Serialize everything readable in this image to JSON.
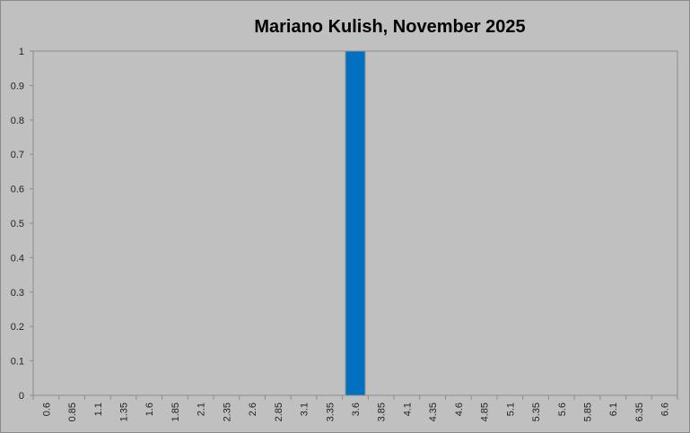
{
  "chart_data": {
    "type": "bar",
    "title": "Mariano Kulish, November 2025",
    "xlabel": "",
    "ylabel": "",
    "categories": [
      "0.6",
      "0.85",
      "1.1",
      "1.35",
      "1.6",
      "1.85",
      "2.1",
      "2.35",
      "2.6",
      "2.85",
      "3.1",
      "3.35",
      "3.6",
      "3.85",
      "4.1",
      "4.35",
      "4.6",
      "4.85",
      "5.1",
      "5.35",
      "5.6",
      "5.85",
      "6.1",
      "6.35",
      "6.6"
    ],
    "values": [
      0,
      0,
      0,
      0,
      0,
      0,
      0,
      0,
      0,
      0,
      0,
      0,
      1,
      0,
      0,
      0,
      0,
      0,
      0,
      0,
      0,
      0,
      0,
      0,
      0
    ],
    "ylim": [
      0,
      1
    ],
    "yticks": [
      "0",
      "0.1",
      "0.2",
      "0.3",
      "0.4",
      "0.5",
      "0.6",
      "0.7",
      "0.8",
      "0.9",
      "1"
    ],
    "grid": false,
    "legend": "none",
    "colors": {
      "bar": "#0070c0",
      "background": "#c0c0c0"
    }
  }
}
